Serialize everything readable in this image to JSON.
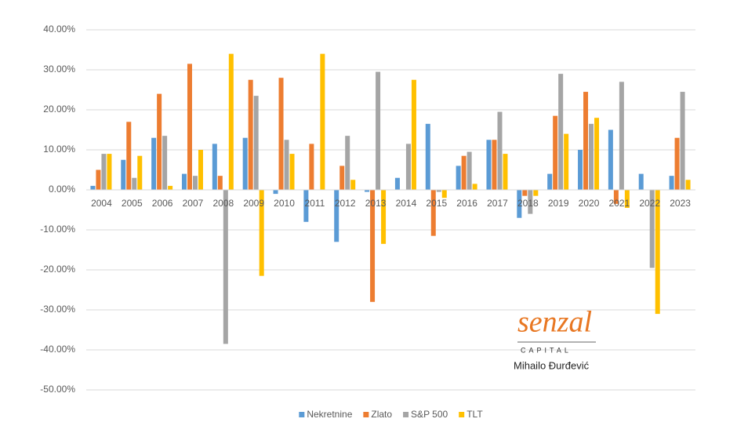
{
  "chart_data": {
    "type": "bar",
    "categories": [
      "2004",
      "2005",
      "2006",
      "2007",
      "2008",
      "2009",
      "2010",
      "2011",
      "2012",
      "2013",
      "2014",
      "2015",
      "2016",
      "2017",
      "2018",
      "2019",
      "2020",
      "2021",
      "2022",
      "2023"
    ],
    "series": [
      {
        "name": "Nekretnine",
        "color": "#5b9bd5",
        "values": [
          1,
          7.5,
          13,
          4,
          11.5,
          13,
          -1,
          -8,
          -13,
          -0.5,
          3,
          16.5,
          6,
          12.5,
          -7,
          4,
          10,
          15,
          4,
          3.5
        ]
      },
      {
        "name": "Zlato",
        "color": "#ed7d31",
        "values": [
          5,
          17,
          24,
          31.5,
          3.5,
          27.5,
          28,
          11.5,
          6,
          -28,
          0,
          -11.5,
          8.5,
          12.5,
          -1.5,
          18.5,
          24.5,
          -3.5,
          0,
          13
        ]
      },
      {
        "name": "S&P 500",
        "color": "#a5a5a5",
        "values": [
          9,
          3,
          13.5,
          3.5,
          -38.5,
          23.5,
          12.5,
          0,
          13.5,
          29.5,
          11.5,
          -0.5,
          9.5,
          19.5,
          -6,
          29,
          16.5,
          27,
          -19.5,
          24.5
        ]
      },
      {
        "name": "TLT",
        "color": "#ffc000",
        "values": [
          9,
          8.5,
          1,
          10,
          34,
          -21.5,
          9,
          34,
          2.5,
          -13.5,
          27.5,
          -2,
          1.5,
          9,
          -1.5,
          14,
          18,
          -4.5,
          -31,
          2.5
        ]
      }
    ],
    "ylim": [
      -50,
      40
    ],
    "yticks": [
      {
        "value": -50,
        "label": "-50.00%"
      },
      {
        "value": -40,
        "label": "-40.00%"
      },
      {
        "value": -30,
        "label": "-30.00%"
      },
      {
        "value": -20,
        "label": "-20.00%"
      },
      {
        "value": -10,
        "label": "-10.00%"
      },
      {
        "value": 0,
        "label": "0.00%"
      },
      {
        "value": 10,
        "label": "10.00%"
      },
      {
        "value": 20,
        "label": "20.00%"
      },
      {
        "value": 30,
        "label": "30.00%"
      },
      {
        "value": 40,
        "label": "40.00%"
      }
    ],
    "grid": true,
    "legend": "bottom",
    "annotations": [
      "senzal",
      "CAPITAL",
      "Mihailo Đurđević"
    ]
  }
}
